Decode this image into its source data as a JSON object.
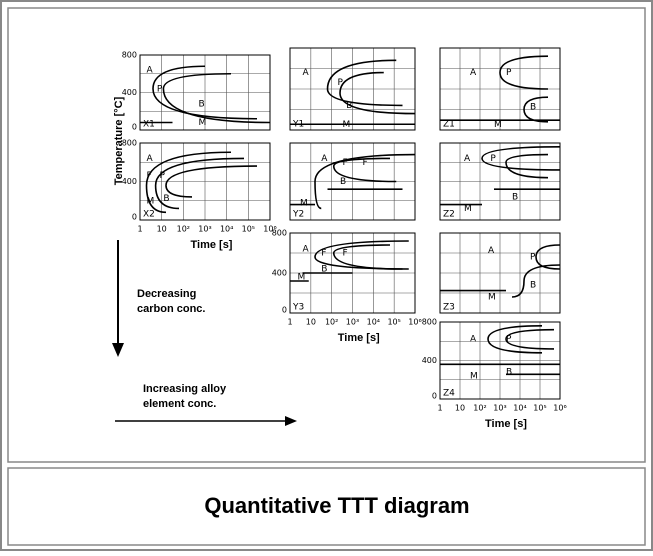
{
  "y_axis_title": "Temperature  [°C]",
  "x_axis_title": "Time   [s]",
  "temperature_ticks": [
    0,
    400,
    800
  ],
  "time_ticks": [
    "1",
    "10",
    "10²",
    "10³",
    "10⁴",
    "10⁵",
    "10⁶"
  ],
  "arrow_down_label": [
    "Decreasing",
    "carbon conc."
  ],
  "arrow_right_label": [
    "Increasing alloy",
    "element conc."
  ],
  "caption": "Quantitative TTT diagram",
  "panels": [
    {
      "id": "X1",
      "phases": [
        "A",
        "P",
        "B",
        "M"
      ]
    },
    {
      "id": "Y1",
      "phases": [
        "A",
        "P",
        "B",
        "M"
      ]
    },
    {
      "id": "Z1",
      "phases": [
        "A",
        "P",
        "B",
        "M"
      ]
    },
    {
      "id": "X2",
      "phases": [
        "A",
        "F",
        "P",
        "B",
        "M"
      ]
    },
    {
      "id": "Y2",
      "phases": [
        "A",
        "F",
        "F",
        "B",
        "M"
      ]
    },
    {
      "id": "Z2",
      "phases": [
        "A",
        "P",
        "B",
        "M"
      ]
    },
    {
      "id": "Y3",
      "phases": [
        "A",
        "F",
        "F",
        "B",
        "M"
      ]
    },
    {
      "id": "Z3",
      "phases": [
        "A",
        "P",
        "B",
        "M"
      ]
    },
    {
      "id": "Z4",
      "phases": [
        "A",
        "P",
        "B",
        "M"
      ]
    }
  ]
}
